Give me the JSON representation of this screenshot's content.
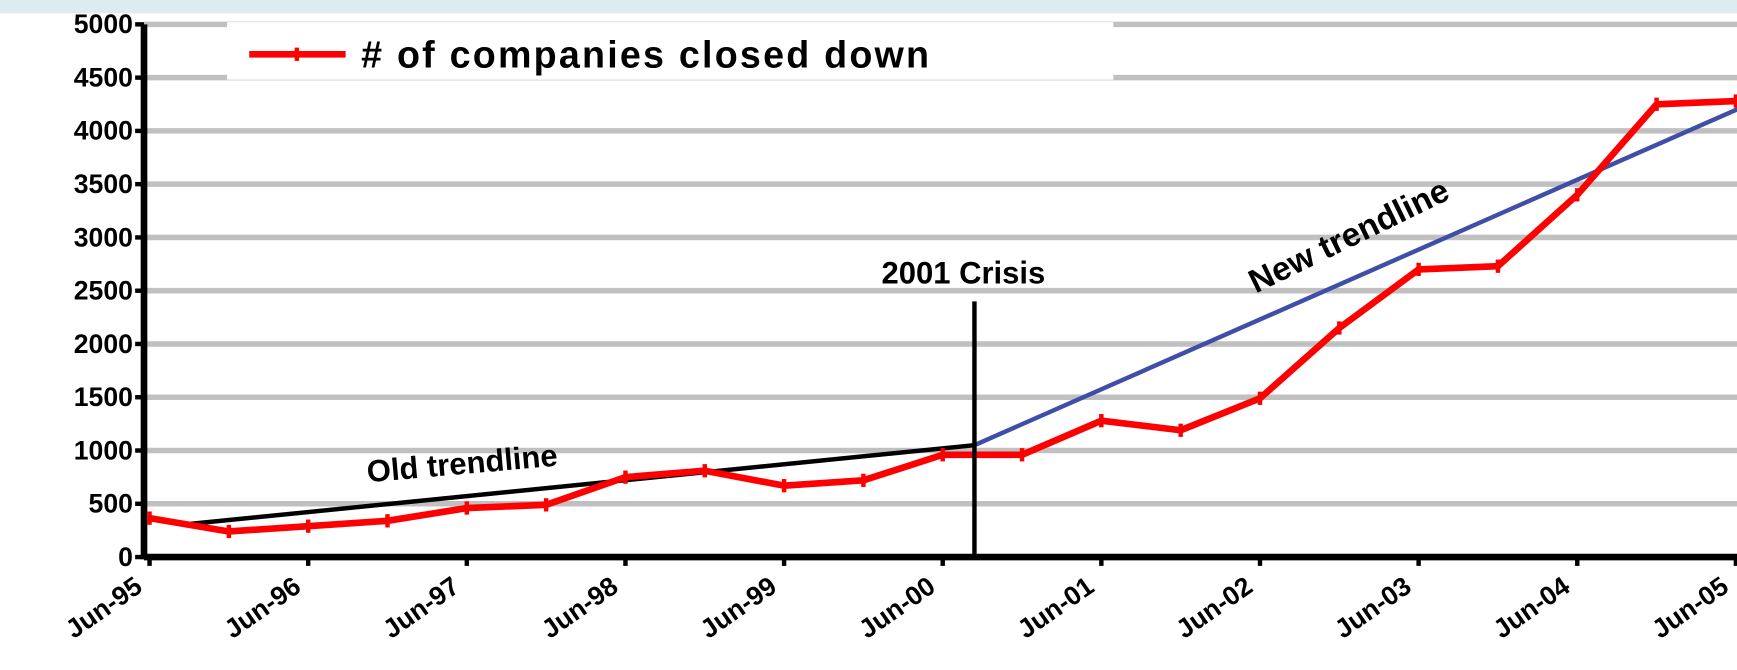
{
  "chart_data": {
    "type": "line",
    "categories": [
      "Jun-95",
      null,
      "Jun-96",
      null,
      "Jun-97",
      null,
      "Jun-98",
      null,
      "Jun-99",
      null,
      "Jun-00",
      null,
      "Jun-01",
      null,
      "Jun-02",
      null,
      "Jun-03",
      null,
      "Jun-04",
      null,
      "Jun-05"
    ],
    "series": [
      {
        "name": "# of companies closed down",
        "color": "#ff0000",
        "values": [
          365,
          240,
          290,
          340,
          460,
          490,
          750,
          810,
          670,
          720,
          960,
          960,
          1280,
          1190,
          1490,
          2150,
          2700,
          2730,
          3400,
          4250,
          4280
        ]
      }
    ],
    "ylim": [
      0,
      5000
    ],
    "yticks": [
      0,
      500,
      1000,
      1500,
      2000,
      2500,
      3000,
      3500,
      4000,
      4500,
      5000
    ],
    "grid": true,
    "trendlines": [
      {
        "name": "Old trendline",
        "color": "#000000",
        "start": [
          0.5,
          310
        ],
        "end": [
          10.4,
          1050
        ]
      },
      {
        "name": "New trendline",
        "color": "#3f4fa8",
        "start": [
          10.4,
          1050
        ],
        "end": [
          20.1,
          4230
        ]
      }
    ],
    "annotations": [
      {
        "text": "2001 Crisis",
        "x": 10.4,
        "y": 2400
      }
    ]
  }
}
